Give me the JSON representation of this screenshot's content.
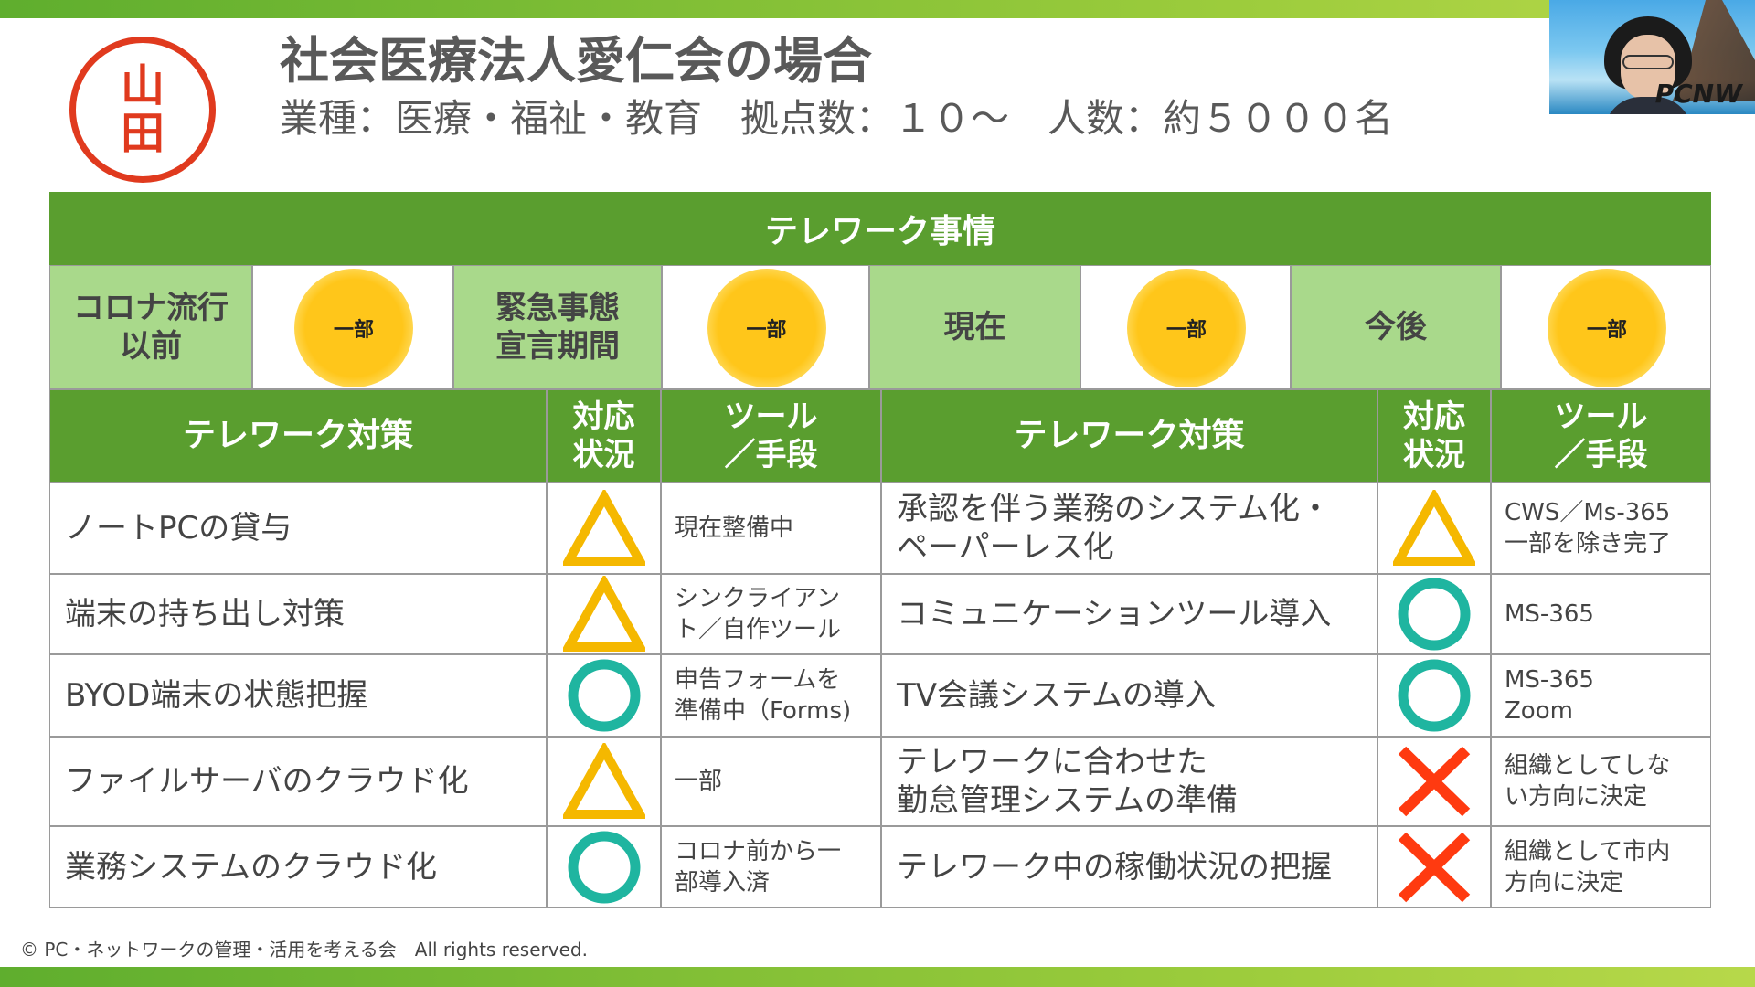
{
  "slide": {
    "stamp": [
      "山",
      "田"
    ],
    "title": "社会医療法人愛仁会の場合",
    "subtitle": "業種：医療・福祉・教育　拠点数：１０～　人数：約５０００名",
    "footer": "© PC・ネットワークの管理・活用を考える会　All rights reserved."
  },
  "webcam": {
    "logo": "PCNW"
  },
  "telework_status": {
    "header": "テレワーク事情",
    "periods": [
      {
        "label": "コロナ流行\n以前",
        "value": "一部"
      },
      {
        "label": "緊急事態\n宣言期間",
        "value": "一部"
      },
      {
        "label": "現在",
        "value": "一部"
      },
      {
        "label": "今後",
        "value": "一部"
      }
    ]
  },
  "columns": {
    "measure": "テレワーク対策",
    "status": "対応\n状況",
    "tool": "ツール\n／手段"
  },
  "left_rows": [
    {
      "measure": "ノートPCの貸与",
      "status": "triangle",
      "tool": "現在整備中"
    },
    {
      "measure": "端末の持ち出し対策",
      "status": "triangle",
      "tool": "シンクライアン\nト／自作ツール"
    },
    {
      "measure": "BYOD端末の状態把握",
      "status": "circle",
      "tool": "申告フォームを\n準備中（Forms)"
    },
    {
      "measure": "ファイルサーバのクラウド化",
      "status": "triangle",
      "tool": "一部"
    },
    {
      "measure": "業務システムのクラウド化",
      "status": "circle",
      "tool": "コロナ前から一\n部導入済"
    }
  ],
  "right_rows": [
    {
      "measure": "承認を伴う業務のシステム化・\nペーパーレス化",
      "status": "triangle",
      "tool": "CWS／Ms-365\n一部を除き完了"
    },
    {
      "measure": "コミュニケーションツール導入",
      "status": "circle",
      "tool": "MS-365"
    },
    {
      "measure": "TV会議システムの導入",
      "status": "circle",
      "tool": "MS-365\nZoom"
    },
    {
      "measure": "テレワークに合わせた\n勤怠管理システムの準備",
      "status": "cross",
      "tool": "組織としてしな\nい方向に決定"
    },
    {
      "measure": "テレワーク中の稼働状況の把握",
      "status": "cross",
      "tool": "組織として市内\n方向に決定"
    }
  ],
  "colors": {
    "dark_green": "#5a9e2f",
    "light_green": "#a9d98b",
    "sun": "#ffc61a",
    "triangle": "#f5b800",
    "circle": "#1fb5a0",
    "cross": "#ff3a10"
  }
}
